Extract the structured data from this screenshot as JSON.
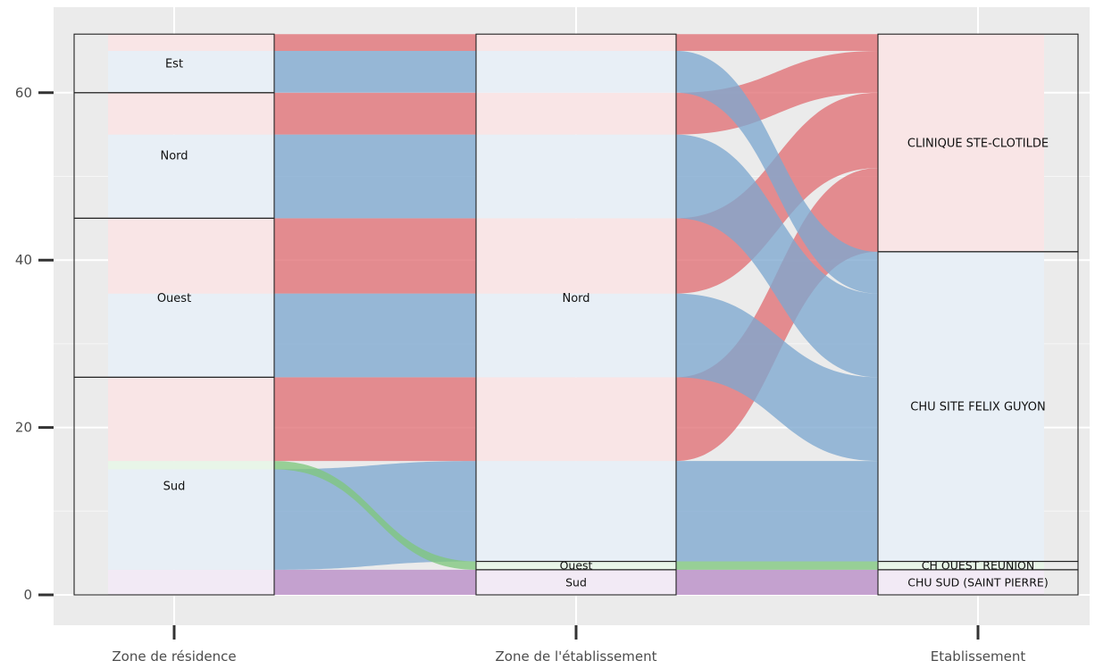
{
  "chart_data": {
    "type": "alluvial",
    "axes": [
      "Zone de résidence",
      "Zone de l'établissement",
      "Etablissement"
    ],
    "y_ticks": [
      "0",
      "20",
      "40",
      "60"
    ],
    "ylim": [
      0,
      67
    ],
    "grid": true,
    "colors": {
      "CLINIQUE STE-CLOTILDE": "#e06f74",
      "CHU SITE FELIX GUYON": "#7ea8cf",
      "CH OUEST REUNION": "#7fc77e",
      "CHU SUD (SAINT PIERRE)": "#b98cc6"
    },
    "strata": [
      {
        "axis": 0,
        "items": [
          {
            "label": "Sud",
            "value": 26
          },
          {
            "label": "Ouest",
            "value": 19
          },
          {
            "label": "Nord",
            "value": 15
          },
          {
            "label": "Est",
            "value": 7
          }
        ]
      },
      {
        "axis": 1,
        "items": [
          {
            "label": "Sud",
            "value": 3
          },
          {
            "label": "Ouest",
            "value": 1
          },
          {
            "label": "Nord",
            "value": 63
          }
        ]
      },
      {
        "axis": 2,
        "items": [
          {
            "label": "CHU SUD (SAINT PIERRE)",
            "value": 3
          },
          {
            "label": "CH OUEST REUNION",
            "value": 1
          },
          {
            "label": "CHU SITE FELIX GUYON",
            "value": 37
          },
          {
            "label": "CLINIQUE STE-CLOTILDE",
            "value": 26
          }
        ]
      }
    ],
    "flows": [
      {
        "from": "Sud",
        "to": "Sud",
        "etab": "CHU SUD (SAINT PIERRE)",
        "value": 3
      },
      {
        "from": "Sud",
        "to": "Nord",
        "etab": "CHU SITE FELIX GUYON",
        "value": 12
      },
      {
        "from": "Sud",
        "to": "Ouest",
        "etab": "CH OUEST REUNION",
        "value": 1
      },
      {
        "from": "Sud",
        "to": "Nord",
        "etab": "CLINIQUE STE-CLOTILDE",
        "value": 10
      },
      {
        "from": "Ouest",
        "to": "Nord",
        "etab": "CHU SITE FELIX GUYON",
        "value": 10
      },
      {
        "from": "Ouest",
        "to": "Nord",
        "etab": "CLINIQUE STE-CLOTILDE",
        "value": 9
      },
      {
        "from": "Nord",
        "to": "Nord",
        "etab": "CHU SITE FELIX GUYON",
        "value": 10
      },
      {
        "from": "Nord",
        "to": "Nord",
        "etab": "CLINIQUE STE-CLOTILDE",
        "value": 5
      },
      {
        "from": "Est",
        "to": "Nord",
        "etab": "CHU SITE FELIX GUYON",
        "value": 5
      },
      {
        "from": "Est",
        "to": "Nord",
        "etab": "CLINIQUE STE-CLOTILDE",
        "value": 2
      }
    ]
  }
}
